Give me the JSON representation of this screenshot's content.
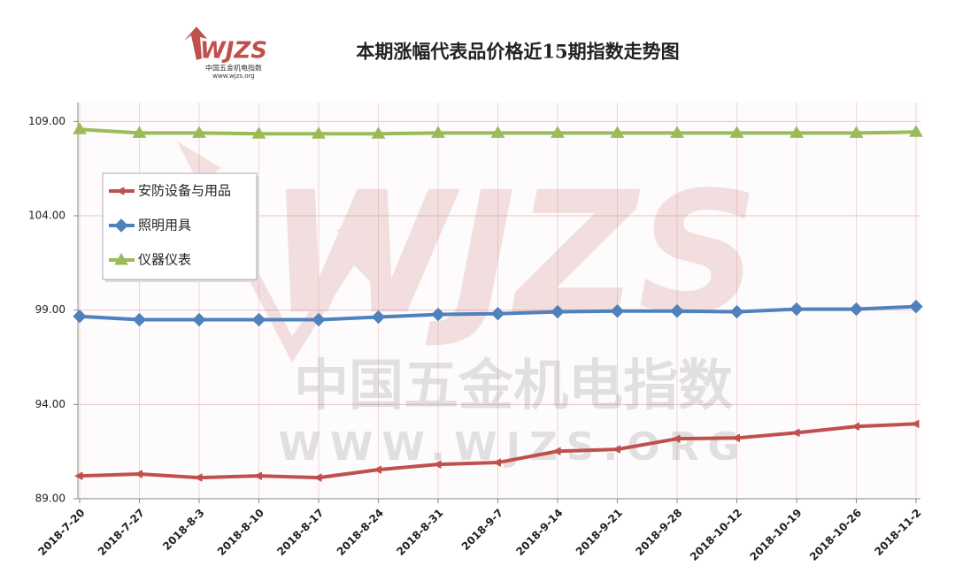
{
  "chart_data": {
    "type": "line",
    "title": "本期涨幅代表品价格近15期指数走势图",
    "logo": {
      "name": "WJZS",
      "subtitle": "中国五金机电指数",
      "url": "www.wjzs.org"
    },
    "watermark": {
      "name": "WJZS",
      "subtitle": "中国五金机电指数",
      "url": "WWW.WJZS.ORG"
    },
    "categories": [
      "2018-7-20",
      "2018-7-27",
      "2018-8-3",
      "2018-8-10",
      "2018-8-17",
      "2018-8-24",
      "2018-8-31",
      "2018-9-7",
      "2018-9-14",
      "2018-9-21",
      "2018-9-28",
      "2018-10-12",
      "2018-10-19",
      "2018-10-26",
      "2018-11-2"
    ],
    "series": [
      {
        "name": "安防设备与用品",
        "color": "#c0504d",
        "marker": "arrow",
        "values": [
          90.21,
          90.31,
          90.12,
          90.21,
          90.12,
          90.54,
          90.82,
          90.92,
          91.52,
          91.62,
          92.18,
          92.22,
          92.5,
          92.83,
          92.97
        ]
      },
      {
        "name": "照明用具",
        "color": "#4f81bd",
        "marker": "diamond",
        "values": [
          98.67,
          98.49,
          98.49,
          98.49,
          98.49,
          98.63,
          98.77,
          98.81,
          98.91,
          98.95,
          98.95,
          98.91,
          99.05,
          99.05,
          99.19
        ]
      },
      {
        "name": "仪器仪表",
        "color": "#9bbb59",
        "marker": "triangle",
        "values": [
          108.58,
          108.39,
          108.39,
          108.35,
          108.35,
          108.35,
          108.39,
          108.39,
          108.39,
          108.39,
          108.39,
          108.39,
          108.39,
          108.39,
          108.44
        ]
      }
    ],
    "ylim": [
      89,
      110
    ],
    "yticks": [
      {
        "value": 89,
        "label": "89.00"
      },
      {
        "value": 94,
        "label": "94.00"
      },
      {
        "value": 99,
        "label": "99.00"
      },
      {
        "value": 104,
        "label": "104.00"
      },
      {
        "value": 109,
        "label": "109.00"
      }
    ],
    "grid": true
  }
}
